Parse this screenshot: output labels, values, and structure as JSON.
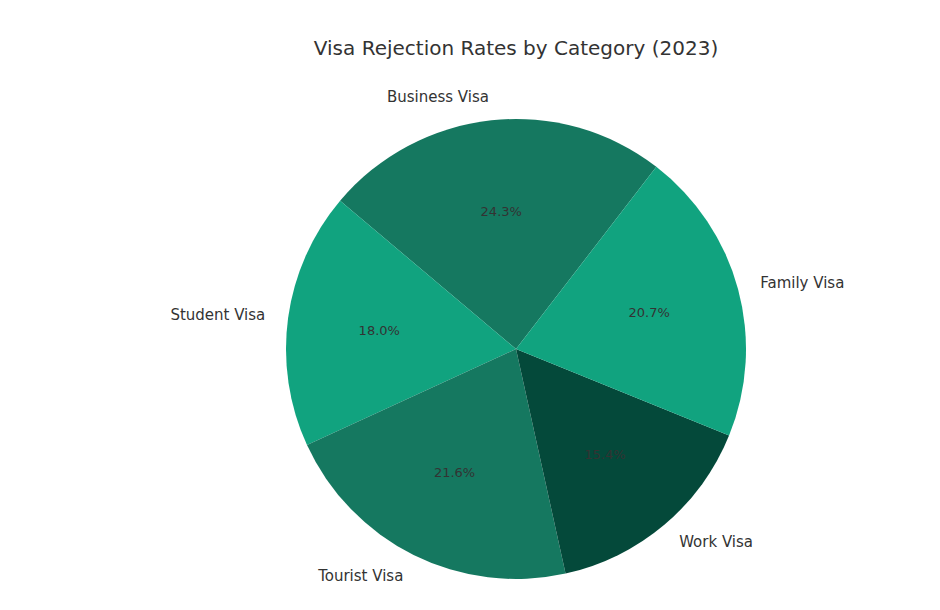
{
  "chart_data": {
    "type": "pie",
    "title": "Visa Rejection Rates by Category (2023)",
    "categories": [
      "Business Visa",
      "Student Visa",
      "Tourist Visa",
      "Work Visa",
      "Family Visa"
    ],
    "values": [
      24.3,
      18.0,
      21.6,
      15.4,
      20.7
    ],
    "value_labels": [
      "24.3%",
      "18.0%",
      "21.6%",
      "15.4%",
      "20.7%"
    ],
    "colors": [
      "#157860",
      "#11a37f",
      "#157860",
      "#04493a",
      "#11a37f"
    ],
    "data_labels": true
  }
}
